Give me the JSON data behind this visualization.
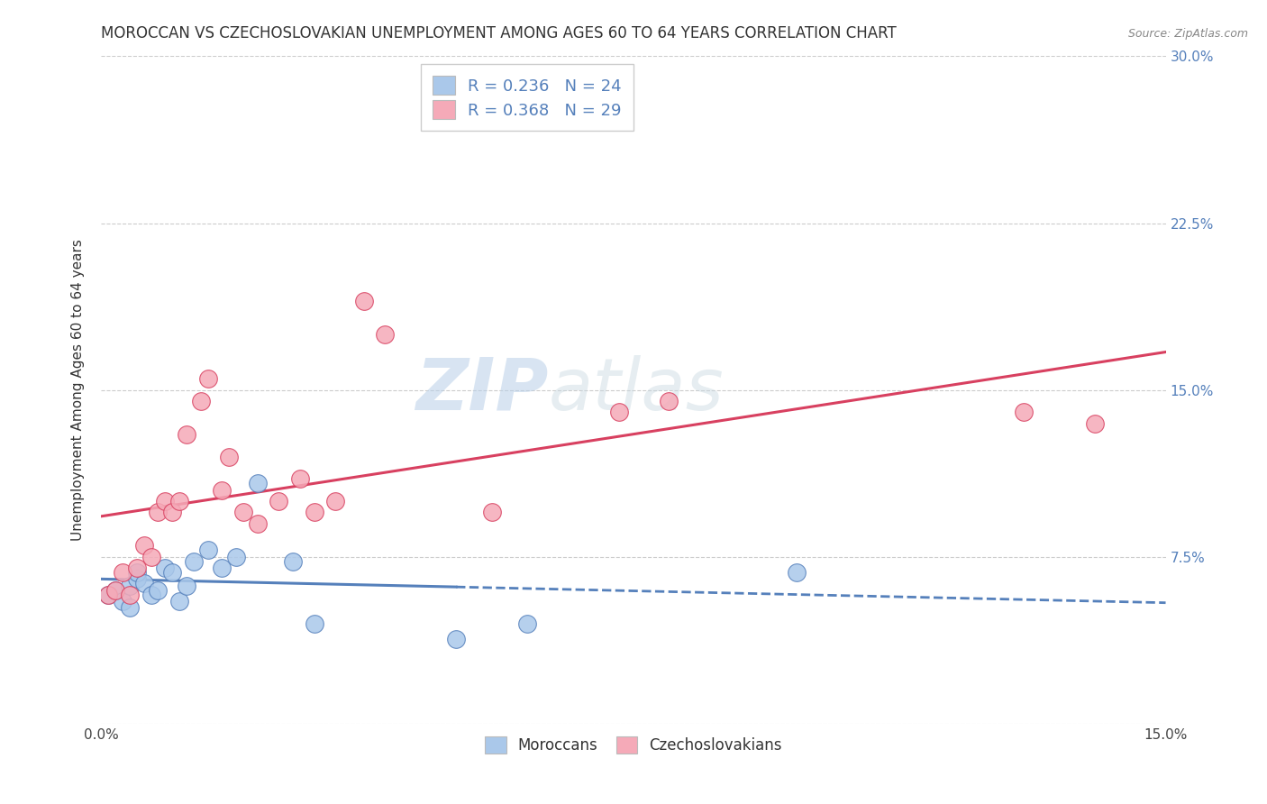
{
  "title": "MOROCCAN VS CZECHOSLOVAKIAN UNEMPLOYMENT AMONG AGES 60 TO 64 YEARS CORRELATION CHART",
  "source": "Source: ZipAtlas.com",
  "ylabel": "Unemployment Among Ages 60 to 64 years",
  "xlim": [
    0.0,
    0.15
  ],
  "ylim": [
    0.0,
    0.3
  ],
  "yticks": [
    0.0,
    0.075,
    0.15,
    0.225,
    0.3
  ],
  "yticklabels_right": [
    "",
    "7.5%",
    "15.0%",
    "22.5%",
    "30.0%"
  ],
  "moroccan_x": [
    0.001,
    0.002,
    0.003,
    0.004,
    0.004,
    0.005,
    0.005,
    0.006,
    0.007,
    0.008,
    0.009,
    0.01,
    0.011,
    0.012,
    0.013,
    0.015,
    0.017,
    0.019,
    0.022,
    0.027,
    0.03,
    0.05,
    0.06,
    0.098
  ],
  "moroccan_y": [
    0.058,
    0.06,
    0.055,
    0.062,
    0.052,
    0.065,
    0.068,
    0.063,
    0.058,
    0.06,
    0.07,
    0.068,
    0.055,
    0.062,
    0.073,
    0.078,
    0.07,
    0.075,
    0.108,
    0.073,
    0.045,
    0.038,
    0.045,
    0.068
  ],
  "czechoslovakian_x": [
    0.001,
    0.002,
    0.003,
    0.004,
    0.005,
    0.006,
    0.007,
    0.008,
    0.009,
    0.01,
    0.011,
    0.012,
    0.014,
    0.015,
    0.017,
    0.018,
    0.02,
    0.022,
    0.025,
    0.028,
    0.03,
    0.033,
    0.037,
    0.04,
    0.055,
    0.073,
    0.08,
    0.13,
    0.14
  ],
  "czechoslovakian_y": [
    0.058,
    0.06,
    0.068,
    0.058,
    0.07,
    0.08,
    0.075,
    0.095,
    0.1,
    0.095,
    0.1,
    0.13,
    0.145,
    0.155,
    0.105,
    0.12,
    0.095,
    0.09,
    0.1,
    0.11,
    0.095,
    0.1,
    0.19,
    0.175,
    0.095,
    0.14,
    0.145,
    0.14,
    0.135
  ],
  "moroccan_color": "#aac8ea",
  "czechoslovakian_color": "#f5aab8",
  "moroccan_dot_edge": "#5580bb",
  "czechoslovakian_dot_edge": "#d84060",
  "moroccan_line_color": "#5580bb",
  "czechoslovakian_line_color": "#d84060",
  "moroccan_line_solid_end": 0.05,
  "R_moroccan": 0.236,
  "N_moroccan": 24,
  "R_czechoslovakian": 0.368,
  "N_czechoslovakian": 29,
  "legend_moroccan_label": "Moroccans",
  "legend_czechoslovakian_label": "Czechoslovakians",
  "watermark_zip": "ZIP",
  "watermark_atlas": "atlas",
  "grid_color": "#cccccc",
  "background_color": "#ffffff",
  "right_tick_color": "#5580bb",
  "title_fontsize": 12,
  "axis_label_fontsize": 11,
  "tick_fontsize": 11
}
